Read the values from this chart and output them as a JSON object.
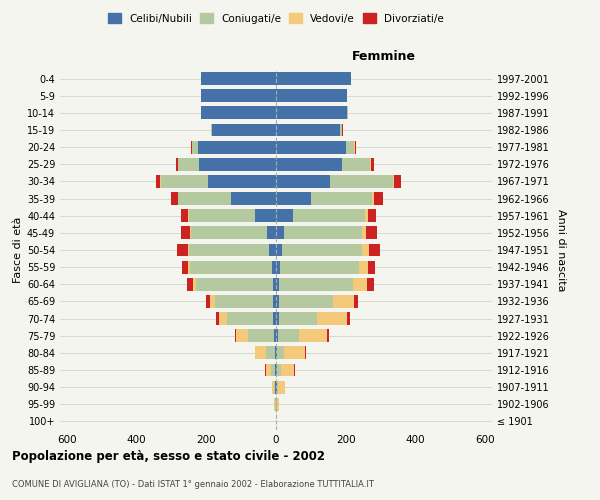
{
  "age_groups": [
    "100+",
    "95-99",
    "90-94",
    "85-89",
    "80-84",
    "75-79",
    "70-74",
    "65-69",
    "60-64",
    "55-59",
    "50-54",
    "45-49",
    "40-44",
    "35-39",
    "30-34",
    "25-29",
    "20-24",
    "15-19",
    "10-14",
    "5-9",
    "0-4"
  ],
  "birth_years": [
    "≤ 1901",
    "1902-1906",
    "1907-1911",
    "1912-1916",
    "1917-1921",
    "1922-1926",
    "1927-1931",
    "1932-1936",
    "1937-1941",
    "1942-1946",
    "1947-1951",
    "1952-1956",
    "1957-1961",
    "1962-1966",
    "1967-1971",
    "1972-1976",
    "1977-1981",
    "1982-1986",
    "1987-1991",
    "1992-1996",
    "1997-2001"
  ],
  "males": {
    "celibi": [
      0,
      1,
      2,
      3,
      4,
      5,
      10,
      10,
      10,
      12,
      20,
      25,
      60,
      130,
      195,
      220,
      225,
      185,
      215,
      215,
      215
    ],
    "coniugati": [
      0,
      2,
      5,
      12,
      25,
      75,
      130,
      165,
      220,
      235,
      230,
      220,
      190,
      150,
      135,
      60,
      15,
      2,
      1,
      0,
      0
    ],
    "vedovi": [
      0,
      2,
      5,
      15,
      30,
      35,
      25,
      15,
      8,
      5,
      3,
      2,
      2,
      2,
      2,
      2,
      2,
      0,
      0,
      0,
      0
    ],
    "divorziati": [
      0,
      0,
      0,
      1,
      2,
      3,
      8,
      10,
      18,
      18,
      30,
      25,
      22,
      18,
      12,
      5,
      3,
      0,
      0,
      0,
      0
    ]
  },
  "females": {
    "nubili": [
      0,
      1,
      2,
      3,
      4,
      5,
      8,
      8,
      10,
      12,
      18,
      22,
      50,
      100,
      155,
      190,
      200,
      185,
      205,
      205,
      215
    ],
    "coniugate": [
      0,
      2,
      5,
      10,
      20,
      60,
      110,
      155,
      210,
      225,
      230,
      225,
      205,
      175,
      180,
      80,
      25,
      5,
      1,
      0,
      0
    ],
    "vedove": [
      0,
      5,
      18,
      40,
      60,
      80,
      85,
      60,
      40,
      28,
      18,
      12,
      8,
      6,
      5,
      3,
      2,
      0,
      0,
      0,
      0
    ],
    "divorziate": [
      0,
      0,
      0,
      2,
      3,
      8,
      10,
      12,
      20,
      20,
      32,
      30,
      25,
      25,
      20,
      8,
      4,
      1,
      0,
      0,
      0
    ]
  },
  "colors": {
    "celibi": "#4472a8",
    "coniugati": "#b5c9a0",
    "vedovi": "#f5c97a",
    "divorziati": "#cc2222"
  },
  "xlim": 620,
  "title": "Popolazione per età, sesso e stato civile - 2002",
  "subtitle": "COMUNE DI AVIGLIANA (TO) - Dati ISTAT 1° gennaio 2002 - Elaborazione TUTTITALIA.IT",
  "ylabel_left": "Fasce di età",
  "ylabel_right": "Anni di nascita",
  "xlabel_right": "Femmine",
  "background_color": "#f5f5f0",
  "grid_color": "#cccccc"
}
